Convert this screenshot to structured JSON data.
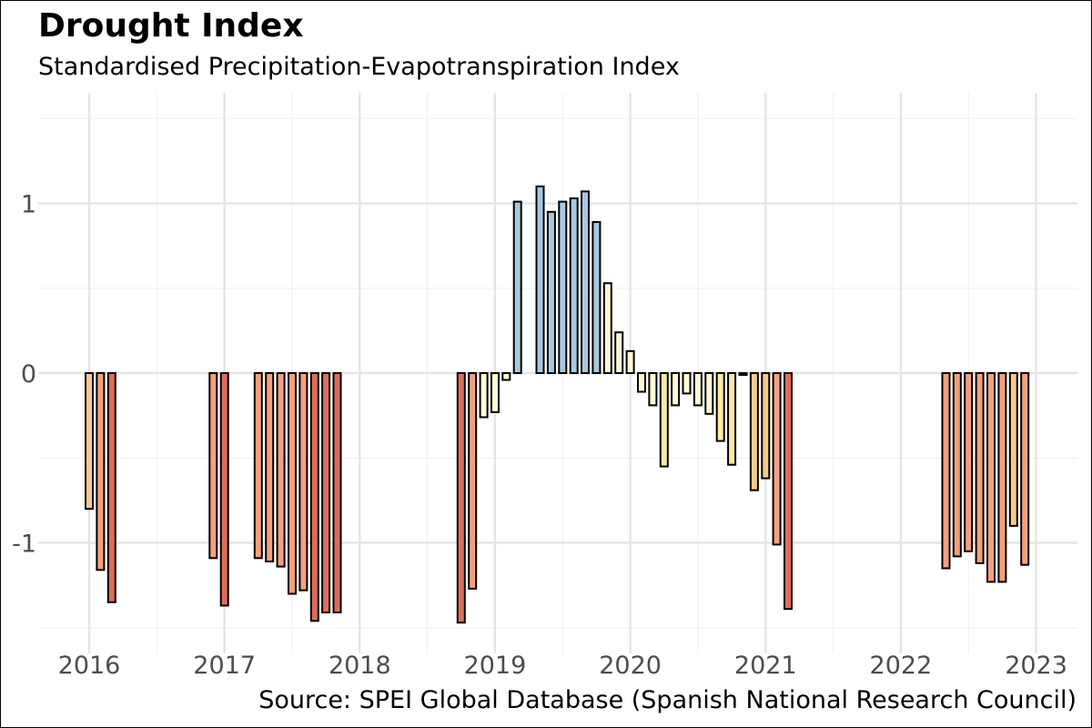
{
  "chart_data": {
    "type": "bar",
    "title": "Drought Index",
    "subtitle": "Standardised Precipitation-Evapotranspiration Index",
    "caption": "Source: SPEI Global Database (Spanish National Research Council)",
    "xlabel": "",
    "ylabel": "",
    "x_ticks": [
      "2016",
      "2017",
      "2018",
      "2019",
      "2020",
      "2021",
      "2022",
      "2023"
    ],
    "y_ticks": [
      "-1",
      "0",
      "1"
    ],
    "ylim": [
      -1.6,
      1.5
    ],
    "grid": true,
    "legend": "none",
    "colors": {
      "strong_dry": "#e06c5a",
      "dry": "#f4a07e",
      "moderate_dry": "#f8c98c",
      "near_normal": "#fde9a8",
      "neutral": "#fff9d6",
      "wet": "#a9c8df"
    },
    "bars": [
      {
        "date": "2016-01",
        "value": -0.8
      },
      {
        "date": "2016-02",
        "value": -1.16
      },
      {
        "date": "2016-03",
        "value": -1.35
      },
      {
        "date": "2016-12",
        "value": -1.09
      },
      {
        "date": "2017-01",
        "value": -1.37
      },
      {
        "date": "2017-04",
        "value": -1.09
      },
      {
        "date": "2017-05",
        "value": -1.11
      },
      {
        "date": "2017-06",
        "value": -1.14
      },
      {
        "date": "2017-07",
        "value": -1.3
      },
      {
        "date": "2017-08",
        "value": -1.28
      },
      {
        "date": "2017-09",
        "value": -1.46
      },
      {
        "date": "2017-10",
        "value": -1.41
      },
      {
        "date": "2017-11",
        "value": -1.41
      },
      {
        "date": "2018-10",
        "value": -1.47
      },
      {
        "date": "2018-11",
        "value": -1.27
      },
      {
        "date": "2018-12",
        "value": -0.26
      },
      {
        "date": "2019-01",
        "value": -0.23
      },
      {
        "date": "2019-02",
        "value": -0.04
      },
      {
        "date": "2019-03",
        "value": 1.01
      },
      {
        "date": "2019-05",
        "value": 1.1
      },
      {
        "date": "2019-06",
        "value": 0.95
      },
      {
        "date": "2019-07",
        "value": 1.01
      },
      {
        "date": "2019-08",
        "value": 1.03
      },
      {
        "date": "2019-09",
        "value": 1.07
      },
      {
        "date": "2019-10",
        "value": 0.89
      },
      {
        "date": "2019-11",
        "value": 0.53
      },
      {
        "date": "2019-12",
        "value": 0.24
      },
      {
        "date": "2020-01",
        "value": 0.13
      },
      {
        "date": "2020-02",
        "value": -0.11
      },
      {
        "date": "2020-03",
        "value": -0.19
      },
      {
        "date": "2020-04",
        "value": -0.55
      },
      {
        "date": "2020-05",
        "value": -0.19
      },
      {
        "date": "2020-06",
        "value": -0.12
      },
      {
        "date": "2020-07",
        "value": -0.19
      },
      {
        "date": "2020-08",
        "value": -0.24
      },
      {
        "date": "2020-09",
        "value": -0.4
      },
      {
        "date": "2020-10",
        "value": -0.54
      },
      {
        "date": "2020-11",
        "value": -0.01
      },
      {
        "date": "2020-12",
        "value": -0.69
      },
      {
        "date": "2021-01",
        "value": -0.62
      },
      {
        "date": "2021-02",
        "value": -1.01
      },
      {
        "date": "2021-03",
        "value": -1.39
      },
      {
        "date": "2022-05",
        "value": -1.15
      },
      {
        "date": "2022-06",
        "value": -1.08
      },
      {
        "date": "2022-07",
        "value": -1.05
      },
      {
        "date": "2022-08",
        "value": -1.12
      },
      {
        "date": "2022-09",
        "value": -1.23
      },
      {
        "date": "2022-10",
        "value": -1.23
      },
      {
        "date": "2022-11",
        "value": -0.9
      },
      {
        "date": "2022-12",
        "value": -1.13
      }
    ]
  }
}
